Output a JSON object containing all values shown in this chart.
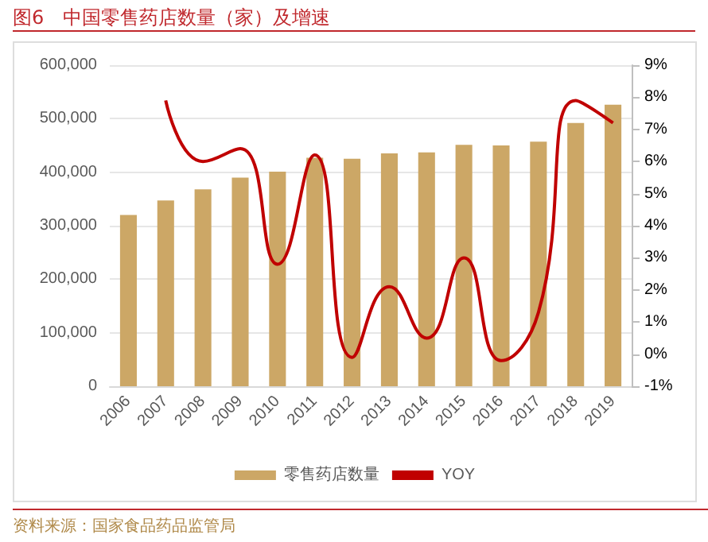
{
  "chart_data": {
    "type": "bar",
    "title": "图6　中国零售药店数量（家）及增速",
    "categories": [
      "2006",
      "2007",
      "2008",
      "2009",
      "2010",
      "2011",
      "2012",
      "2013",
      "2014",
      "2015",
      "2016",
      "2017",
      "2018",
      "2019"
    ],
    "series": [
      {
        "name": "零售药店数量",
        "color": "#cca766",
        "values": [
          320000,
          347000,
          368000,
          390000,
          401000,
          427000,
          425000,
          435000,
          437000,
          451000,
          450000,
          457000,
          492000,
          526000
        ]
      },
      {
        "name": "YOY",
        "type": "line",
        "axis": "y2",
        "color": "#c00000",
        "values": [
          null,
          7.9,
          6.0,
          6.4,
          2.8,
          6.2,
          -0.1,
          2.1,
          0.5,
          3.0,
          -0.2,
          1.3,
          7.9,
          7.2
        ]
      }
    ],
    "ylim": [
      0,
      600000
    ],
    "yticks": [
      0,
      {
        "value": 100000,
        "label": "100,000"
      },
      {
        "value": 200000,
        "label": "200,000"
      },
      {
        "value": 300000,
        "label": "300,000"
      },
      {
        "value": 400000,
        "label": "400,000"
      },
      {
        "value": 500000,
        "label": "500,000"
      },
      {
        "value": 600000,
        "label": "600,000"
      }
    ],
    "y2lim": [
      -1,
      9
    ],
    "y2ticks": [
      {
        "value": -1,
        "label": "-1%"
      },
      {
        "value": 0,
        "label": "0%"
      },
      {
        "value": 1,
        "label": "1%"
      },
      {
        "value": 2,
        "label": "2%"
      },
      {
        "value": 3,
        "label": "3%"
      },
      {
        "value": 4,
        "label": "4%"
      },
      {
        "value": 5,
        "label": "5%"
      },
      {
        "value": 6,
        "label": "6%"
      },
      {
        "value": 7,
        "label": "7%"
      },
      {
        "value": 8,
        "label": "8%"
      },
      {
        "value": 9,
        "label": "9%"
      }
    ],
    "grid": "y",
    "legend": "bottom",
    "marker": "none",
    "line_style": "solid",
    "annotations": [
      "资料来源：国家食品药品监管局"
    ]
  }
}
